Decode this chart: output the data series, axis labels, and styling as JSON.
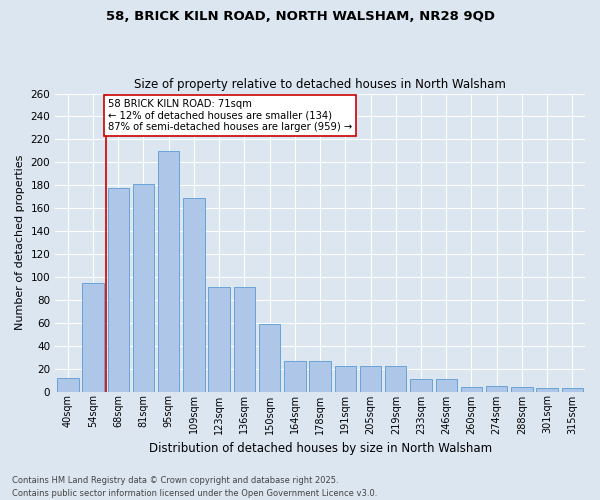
{
  "title_line1": "58, BRICK KILN ROAD, NORTH WALSHAM, NR28 9QD",
  "title_line2": "Size of property relative to detached houses in North Walsham",
  "xlabel": "Distribution of detached houses by size in North Walsham",
  "ylabel": "Number of detached properties",
  "categories": [
    "40sqm",
    "54sqm",
    "68sqm",
    "81sqm",
    "95sqm",
    "109sqm",
    "123sqm",
    "136sqm",
    "150sqm",
    "164sqm",
    "178sqm",
    "191sqm",
    "205sqm",
    "219sqm",
    "233sqm",
    "246sqm",
    "260sqm",
    "274sqm",
    "288sqm",
    "301sqm",
    "315sqm"
  ],
  "values": [
    12,
    95,
    178,
    181,
    210,
    169,
    91,
    91,
    59,
    27,
    27,
    22,
    22,
    22,
    11,
    11,
    4,
    5,
    4,
    3,
    3
  ],
  "bar_color": "#aec6e8",
  "bar_edge_color": "#5b9bd5",
  "vline_x": 1.5,
  "vline_color": "#cc0000",
  "ylim": [
    0,
    260
  ],
  "yticks": [
    0,
    20,
    40,
    60,
    80,
    100,
    120,
    140,
    160,
    180,
    200,
    220,
    240,
    260
  ],
  "annotation_text": "58 BRICK KILN ROAD: 71sqm\n← 12% of detached houses are smaller (134)\n87% of semi-detached houses are larger (959) →",
  "annotation_box_color": "#ffffff",
  "annotation_box_edge": "#cc0000",
  "footer_line1": "Contains HM Land Registry data © Crown copyright and database right 2025.",
  "footer_line2": "Contains public sector information licensed under the Open Government Licence v3.0.",
  "bg_color": "#dce6f0",
  "plot_bg_color": "#dce6f0"
}
